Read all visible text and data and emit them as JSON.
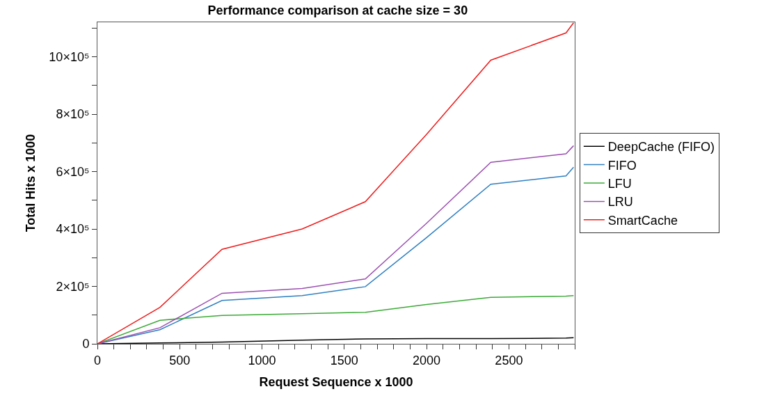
{
  "chart_data": {
    "type": "line",
    "title": "Performance comparison at cache size = 30",
    "xlabel": "Request Sequence x 1000",
    "ylabel": "Total Hits x 1000",
    "x": [
      0,
      380,
      757,
      1244,
      1628,
      2000,
      2390,
      2847,
      2893
    ],
    "series": [
      {
        "name": "DeepCache (FIFO)",
        "color": "#000000",
        "values": [
          0,
          3000,
          6000,
          13000,
          17000,
          18000,
          18000,
          20000,
          21000
        ]
      },
      {
        "name": "FIFO",
        "color": "#2f7fc1",
        "values": [
          0,
          49000,
          151000,
          168000,
          199000,
          370000,
          556000,
          585000,
          615000
        ]
      },
      {
        "name": "LFU",
        "color": "#3aaa35",
        "values": [
          0,
          82000,
          99000,
          105000,
          110000,
          137000,
          162000,
          166000,
          168000
        ]
      },
      {
        "name": "LRU",
        "color": "#9b4fb0",
        "values": [
          0,
          56000,
          176000,
          193000,
          226000,
          420000,
          632000,
          662000,
          690000
        ]
      },
      {
        "name": "SmartCache",
        "color": "#ee1c1c",
        "values": [
          0,
          127000,
          329000,
          400000,
          495000,
          730000,
          988000,
          1083000,
          1118000
        ]
      }
    ],
    "xlim": [
      0,
      2900
    ],
    "ylim": [
      0,
      1120000
    ],
    "xticks": [
      0,
      {
        "value": 100,
        "label": null
      },
      {
        "value": 200,
        "label": null
      },
      {
        "value": 300,
        "label": null
      },
      {
        "value": 400,
        "label": null
      },
      500,
      {
        "value": 600,
        "label": null
      },
      {
        "value": 700,
        "label": null
      },
      {
        "value": 800,
        "label": null
      },
      {
        "value": 900,
        "label": null
      },
      1000,
      {
        "value": 1100,
        "label": null
      },
      {
        "value": 1200,
        "label": null
      },
      {
        "value": 1300,
        "label": null
      },
      {
        "value": 1400,
        "label": null
      },
      1500,
      {
        "value": 1600,
        "label": null
      },
      {
        "value": 1700,
        "label": null
      },
      {
        "value": 1800,
        "label": null
      },
      {
        "value": 1900,
        "label": null
      },
      2000,
      {
        "value": 2100,
        "label": null
      },
      {
        "value": 2200,
        "label": null
      },
      {
        "value": 2300,
        "label": null
      },
      {
        "value": 2400,
        "label": null
      },
      2500,
      {
        "value": 2600,
        "label": null
      },
      {
        "value": 2700,
        "label": null
      },
      {
        "value": 2800,
        "label": null
      },
      {
        "value": 2900,
        "label": null
      }
    ],
    "yticks": [
      0,
      {
        "value": 100000,
        "label": null
      },
      {
        "value": 200000,
        "label": "2×10⁵"
      },
      {
        "value": 300000,
        "label": null
      },
      {
        "value": 400000,
        "label": "4×10⁵"
      },
      {
        "value": 500000,
        "label": null
      },
      {
        "value": 600000,
        "label": "6×10⁵"
      },
      {
        "value": 700000,
        "label": null
      },
      {
        "value": 800000,
        "label": "8×10⁵"
      },
      {
        "value": 900000,
        "label": null
      },
      {
        "value": 1000000,
        "label": "10×10⁵"
      },
      {
        "value": 1100000,
        "label": null
      }
    ],
    "legend": "right",
    "marker": "none",
    "line_style": "solid"
  }
}
